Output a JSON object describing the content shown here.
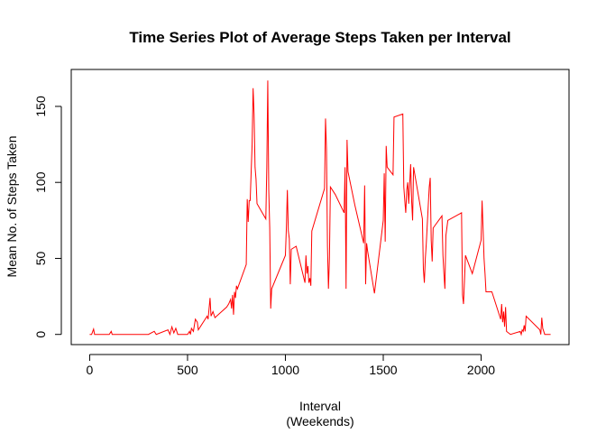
{
  "chart_data": {
    "type": "line",
    "title": "Time Series Plot of Average Steps Taken per Interval",
    "xlabel": "Interval",
    "xlabel_sub": "(Weekends)",
    "ylabel": "Mean No. of Steps Taken",
    "color": "#ff0000",
    "x": [
      0,
      10,
      20,
      25,
      100,
      110,
      115,
      200,
      300,
      330,
      340,
      400,
      410,
      420,
      430,
      440,
      450,
      500,
      510,
      515,
      520,
      530,
      540,
      550,
      555,
      600,
      605,
      615,
      620,
      630,
      640,
      700,
      710,
      720,
      725,
      730,
      735,
      740,
      745,
      750,
      755,
      800,
      805,
      810,
      815,
      820,
      830,
      835,
      840,
      845,
      850,
      855,
      900,
      905,
      910,
      915,
      920,
      925,
      930,
      1000,
      1005,
      1010,
      1015,
      1020,
      1025,
      1030,
      1055,
      1100,
      1105,
      1110,
      1115,
      1120,
      1125,
      1130,
      1135,
      1200,
      1205,
      1210,
      1215,
      1220,
      1225,
      1230,
      1255,
      1300,
      1305,
      1310,
      1315,
      1320,
      1355,
      1400,
      1405,
      1410,
      1415,
      1420,
      1455,
      1500,
      1505,
      1510,
      1515,
      1520,
      1550,
      1555,
      1600,
      1605,
      1610,
      1615,
      1620,
      1625,
      1630,
      1640,
      1645,
      1650,
      1655,
      1700,
      1705,
      1710,
      1715,
      1720,
      1730,
      1735,
      1740,
      1745,
      1750,
      1755,
      1800,
      1805,
      1810,
      1815,
      1820,
      1825,
      1830,
      1900,
      1905,
      1910,
      1915,
      1920,
      1955,
      2000,
      2005,
      2010,
      2015,
      2020,
      2025,
      2055,
      2100,
      2105,
      2110,
      2115,
      2120,
      2125,
      2130,
      2150,
      2200,
      2205,
      2210,
      2215,
      2220,
      2225,
      2230,
      2300,
      2305,
      2310,
      2315,
      2320,
      2325,
      2355
    ],
    "values": [
      0,
      0,
      3.5,
      0,
      0,
      2,
      0,
      0,
      0,
      2,
      0,
      3,
      0,
      5,
      1,
      4,
      0,
      0,
      2,
      0,
      4,
      2,
      10,
      8,
      3,
      12,
      10,
      24,
      12,
      15,
      11,
      18,
      20,
      23,
      17,
      26,
      13,
      28,
      24,
      32,
      30,
      46,
      89,
      74,
      88,
      88,
      125,
      162,
      145,
      110,
      102,
      86,
      76,
      110,
      167,
      95,
      70,
      17,
      30,
      52,
      70,
      95,
      68,
      63,
      33,
      56,
      58,
      34,
      52,
      40,
      45,
      34,
      37,
      32,
      68,
      96,
      142,
      122,
      58,
      30,
      50,
      97,
      92,
      80,
      110,
      30,
      128,
      107,
      85,
      60,
      98,
      33,
      60,
      55,
      27,
      75,
      106,
      61,
      124,
      110,
      105,
      143,
      145,
      97,
      88,
      80,
      95,
      100,
      86,
      112,
      88,
      75,
      110,
      76,
      43,
      34,
      50,
      60,
      85,
      97,
      103,
      62,
      48,
      70,
      78,
      52,
      40,
      30,
      65,
      70,
      75,
      80,
      26,
      20,
      35,
      52,
      40,
      62,
      88,
      70,
      50,
      40,
      28,
      28,
      10,
      20,
      8,
      15,
      5,
      18,
      2,
      0,
      2,
      0,
      3,
      2,
      6,
      2,
      12,
      3,
      0,
      11,
      4,
      2,
      0,
      0
    ],
    "xlim": [
      -94.2,
      2449.2
    ],
    "xticks": [
      0,
      500,
      1000,
      1500,
      2000
    ],
    "ylim": [
      -6.7,
      174.3
    ],
    "yticks": [
      0,
      50,
      100,
      150
    ]
  }
}
